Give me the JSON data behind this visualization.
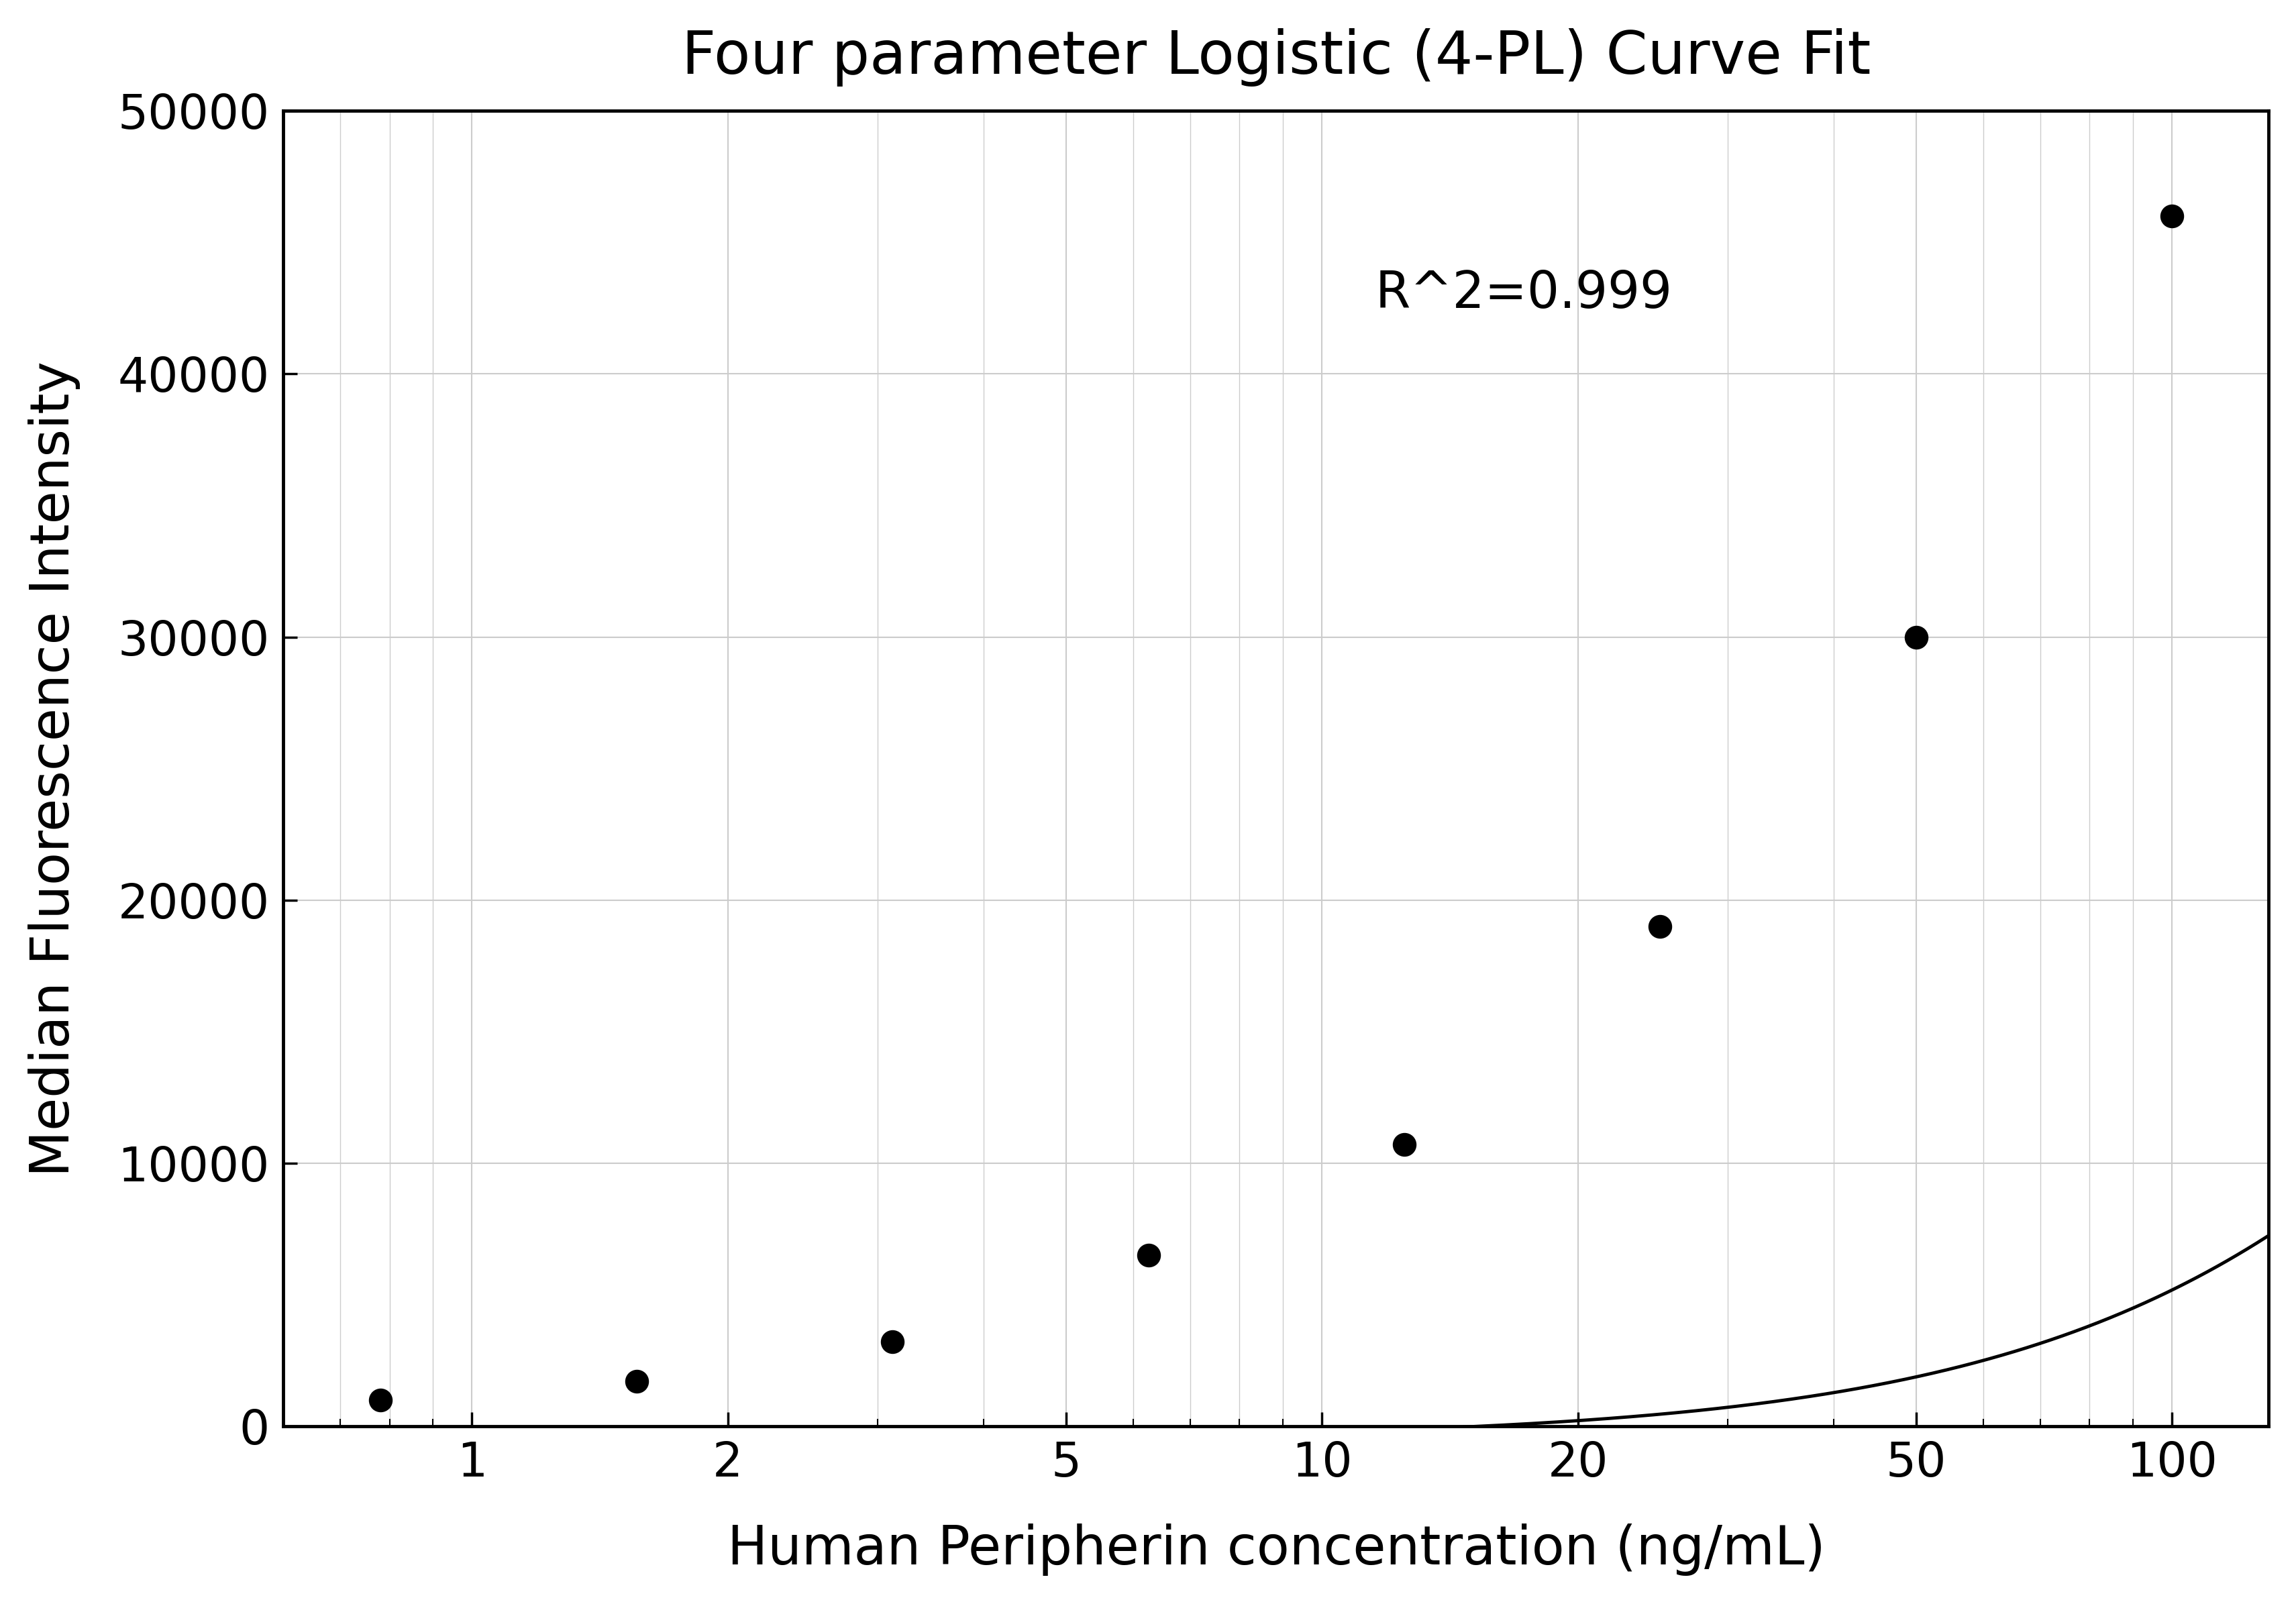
{
  "title": "Four parameter Logistic (4-PL) Curve Fit",
  "xlabel": "Human Peripherin concentration (ng/mL)",
  "ylabel": "Median Fluorescence Intensity",
  "annotation": "R^2=0.999",
  "x_data": [
    0.78,
    1.563,
    3.125,
    6.25,
    12.5,
    25,
    50,
    100
  ],
  "y_data": [
    1000,
    1700,
    3200,
    6500,
    10700,
    19000,
    30000,
    46000
  ],
  "xlim": [
    0.6,
    130
  ],
  "ylim": [
    0,
    50000
  ],
  "yticks": [
    0,
    10000,
    20000,
    30000,
    40000,
    50000
  ],
  "xticks_major": [
    1,
    2,
    5,
    10,
    20,
    50,
    100
  ],
  "background_color": "#ffffff",
  "grid_color": "#cccccc",
  "line_color": "#000000",
  "dot_color": "#000000",
  "title_fontsize": 20,
  "label_fontsize": 18,
  "tick_fontsize": 16,
  "annotation_fontsize": 17,
  "4pl_A": -500,
  "4pl_B": 1.35,
  "4pl_C": 500,
  "4pl_D": 55000
}
